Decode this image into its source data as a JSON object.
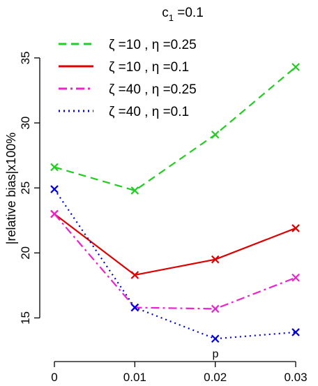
{
  "chart_data": {
    "type": "line",
    "title_main": "c",
    "title_sub": "1",
    "title_rest": " =0.1",
    "xlabel": "p",
    "ylabel": "|relative bias|x100%",
    "x": [
      0,
      0.01,
      0.02,
      0.03
    ],
    "x_tick_labels": [
      "0",
      "0.01",
      "0.02",
      "0.03"
    ],
    "y_ticks": [
      15,
      20,
      25,
      30,
      35
    ],
    "y_tick_labels": [
      "15",
      "20",
      "25",
      "30",
      "35"
    ],
    "xlim": [
      0,
      0.03
    ],
    "ylim": [
      13.2,
      34.3
    ],
    "grid": false,
    "legend_position": "top-left",
    "series": [
      {
        "name": "ζ =10 , η =0.25",
        "values": [
          26.6,
          24.8,
          29.1,
          34.3
        ],
        "color": "#22cc22",
        "dash": "dashed"
      },
      {
        "name": "ζ =10 , η =0.1",
        "values": [
          23.0,
          18.3,
          19.5,
          21.9
        ],
        "color": "#dd0000",
        "dash": "solid"
      },
      {
        "name": "ζ =40 , η =0.25",
        "values": [
          23.0,
          15.8,
          15.7,
          18.1
        ],
        "color": "#ee22cc",
        "dash": "dashdot"
      },
      {
        "name": "ζ =40 , η =0.1",
        "values": [
          24.9,
          15.8,
          13.4,
          13.9
        ],
        "color": "#0000dd",
        "dash": "dotted"
      }
    ]
  }
}
